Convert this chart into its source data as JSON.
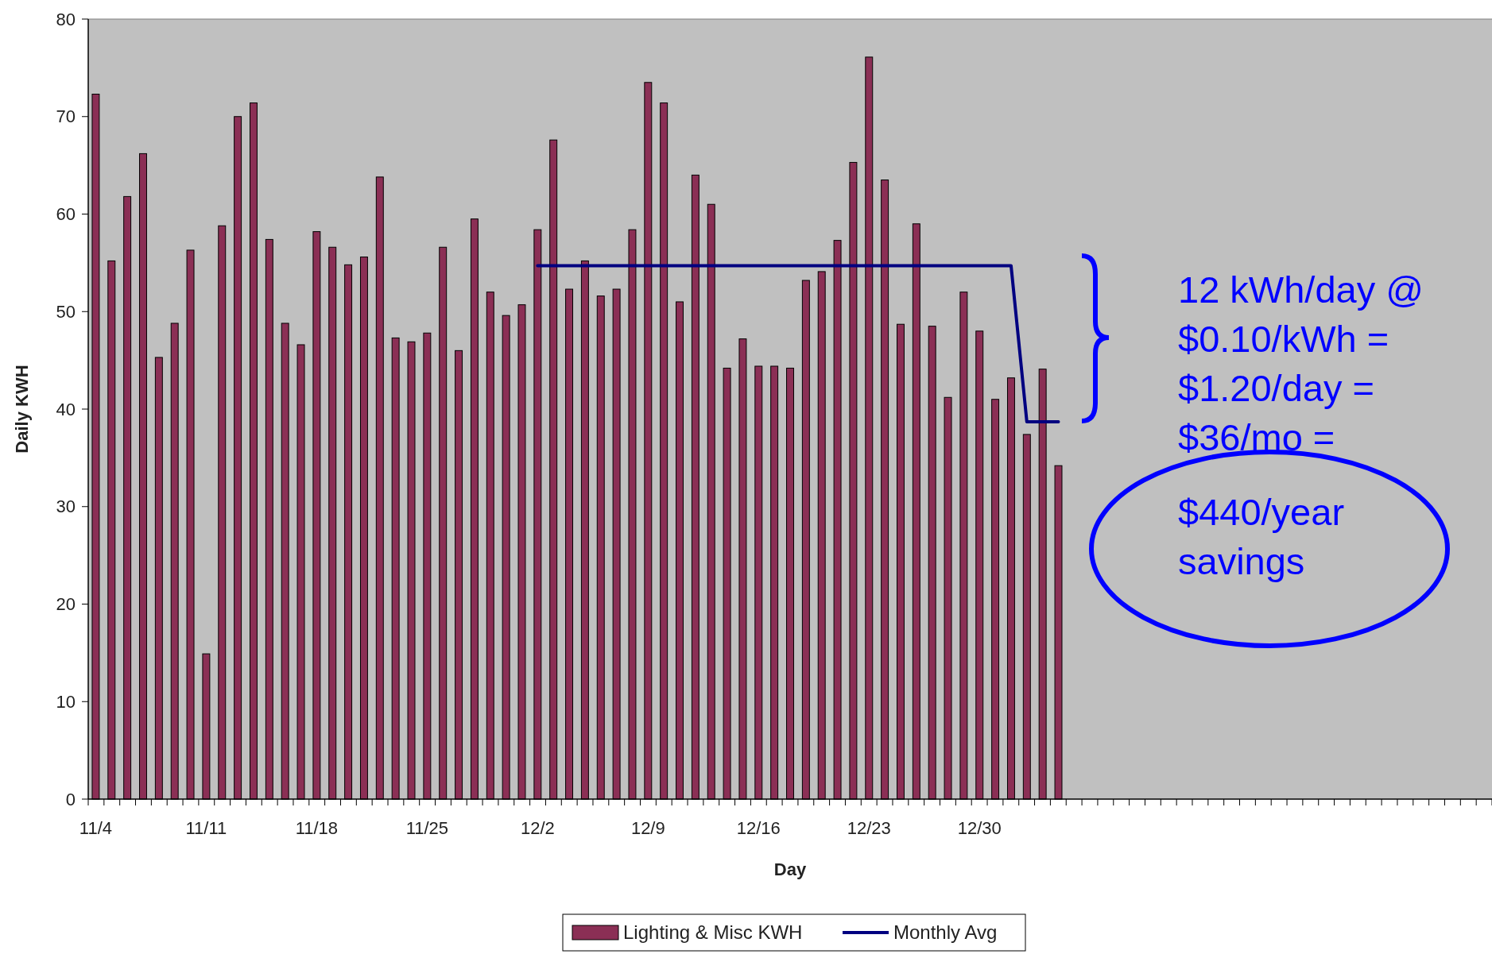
{
  "chart_data": {
    "type": "bar",
    "xlabel": "Day",
    "ylabel": "Daily KWH",
    "categories": [
      "11/4",
      null,
      null,
      null,
      null,
      null,
      null,
      "11/11",
      null,
      null,
      null,
      null,
      null,
      null,
      "11/18",
      null,
      null,
      null,
      null,
      null,
      null,
      "11/25",
      null,
      null,
      null,
      null,
      null,
      null,
      "12/2",
      null,
      null,
      null,
      null,
      null,
      null,
      "12/9",
      null,
      null,
      null,
      null,
      null,
      null,
      "12/16",
      null,
      null,
      null,
      null,
      null,
      null,
      "12/23",
      null,
      null,
      null,
      null,
      null,
      null,
      "12/30",
      null,
      null,
      null,
      null,
      null,
      null,
      null,
      null,
      null,
      null,
      null,
      null,
      null,
      null,
      null,
      null,
      null,
      null,
      null,
      null,
      null,
      null,
      null,
      null,
      null,
      null,
      null,
      null,
      null,
      null,
      null,
      null
    ],
    "series": [
      {
        "name": "Lighting & Misc KWH",
        "color": "#8b2f55",
        "values": [
          72.3,
          55.2,
          61.8,
          66.2,
          45.3,
          48.8,
          56.3,
          14.9,
          58.8,
          70,
          71.4,
          57.4,
          48.8,
          46.6,
          58.2,
          56.6,
          54.8,
          55.6,
          63.8,
          47.3,
          46.9,
          47.8,
          56.6,
          46,
          59.5,
          52,
          49.6,
          50.7,
          58.4,
          67.6,
          52.3,
          55.2,
          51.6,
          52.3,
          58.4,
          73.5,
          71.4,
          51,
          64,
          61,
          44.2,
          47.2,
          44.4,
          44.4,
          44.2,
          53.2,
          54.1,
          57.3,
          65.3,
          76.1,
          63.5,
          48.7,
          59,
          48.5,
          41.2,
          52,
          48,
          41,
          43.2,
          37.4,
          44.1,
          34.2,
          null,
          null,
          null,
          null,
          null,
          null,
          null,
          null,
          null,
          null,
          null,
          null,
          null,
          null,
          null,
          null,
          null,
          null,
          null,
          null,
          null,
          null,
          null,
          null,
          null,
          null,
          null
        ]
      },
      {
        "name": "Monthly Avg",
        "type": "line",
        "color": "#000080",
        "values": [
          null,
          null,
          null,
          null,
          null,
          null,
          null,
          null,
          null,
          null,
          null,
          null,
          null,
          null,
          null,
          null,
          null,
          null,
          null,
          null,
          null,
          null,
          null,
          null,
          null,
          null,
          null,
          null,
          54.7,
          54.7,
          54.7,
          54.7,
          54.7,
          54.7,
          54.7,
          54.7,
          54.7,
          54.7,
          54.7,
          54.7,
          54.7,
          54.7,
          54.7,
          54.7,
          54.7,
          54.7,
          54.7,
          54.7,
          54.7,
          54.7,
          54.7,
          54.7,
          54.7,
          54.7,
          54.7,
          54.7,
          54.7,
          54.7,
          54.7,
          38.7,
          38.7,
          38.7,
          null,
          null,
          null,
          null,
          null,
          null,
          null,
          null,
          null,
          null,
          null,
          null,
          null,
          null,
          null,
          null,
          null,
          null,
          null,
          null,
          null,
          null,
          null,
          null,
          null,
          null,
          null
        ]
      }
    ],
    "ylim": [
      0,
      80
    ],
    "yticks": [
      0,
      10,
      20,
      30,
      40,
      50,
      60,
      70,
      80
    ],
    "grid": false,
    "legend": "bottom",
    "annotations": [
      "12 kWh/day @\n$0.10/kWh =\n$1.20/day =\n$36/mo =",
      "$440/year\nsavings"
    ]
  }
}
